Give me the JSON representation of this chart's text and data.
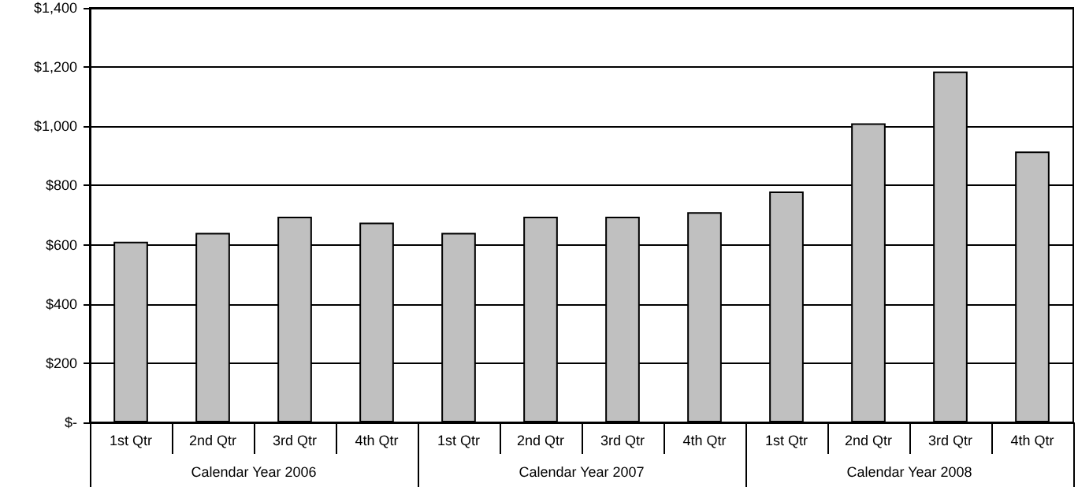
{
  "chart_data": {
    "type": "bar",
    "categories": [
      "1st Qtr",
      "2nd Qtr",
      "3rd Qtr",
      "4th Qtr",
      "1st Qtr",
      "2nd Qtr",
      "3rd Qtr",
      "4th Qtr",
      "1st Qtr",
      "2nd Qtr",
      "3rd Qtr",
      "4th Qtr"
    ],
    "values": [
      610,
      640,
      695,
      675,
      640,
      695,
      695,
      710,
      780,
      1010,
      1185,
      915
    ],
    "color": "#c0c0c0",
    "ylim": [
      0,
      1400
    ],
    "yticks": [
      {
        "value": 0,
        "label": "$-"
      },
      {
        "value": 200,
        "label": "$200"
      },
      {
        "value": 400,
        "label": "$400"
      },
      {
        "value": 600,
        "label": "$600"
      },
      {
        "value": 800,
        "label": "$800"
      },
      {
        "value": 1000,
        "label": "$1,000"
      },
      {
        "value": 1200,
        "label": "$1,200"
      },
      {
        "value": 1400,
        "label": "$1,400"
      }
    ],
    "annotations": [
      "Calendar Year 2006",
      "Calendar Year 2007",
      "Calendar Year 2008"
    ],
    "grid": "y"
  }
}
